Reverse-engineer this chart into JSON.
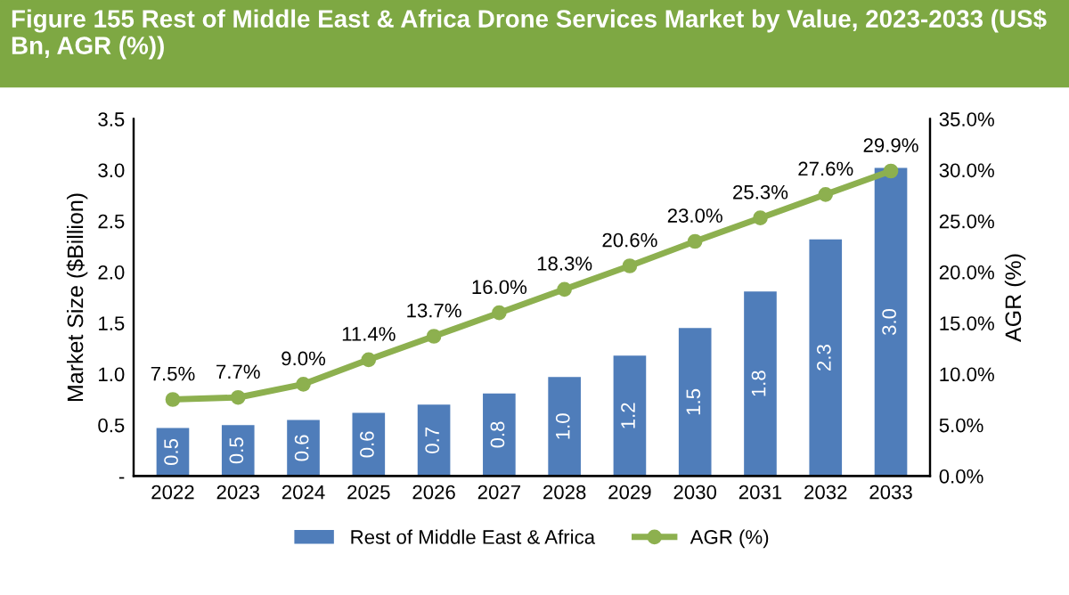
{
  "chart_data": {
    "type": "bar",
    "title": "Figure 155 Rest of Middle East & Africa Drone Services Market by Value, 2023-2033 (US$ Bn, AGR (%))",
    "ylabel": "Market Size ($Billion)",
    "y2label": "AGR (%)",
    "categories": [
      "2022",
      "2023",
      "2024",
      "2025",
      "2026",
      "2027",
      "2028",
      "2029",
      "2030",
      "2031",
      "2032",
      "2033"
    ],
    "series": [
      {
        "name": "Rest of Middle East & Africa",
        "color": "#4f7dba",
        "values": [
          0.47,
          0.5,
          0.55,
          0.62,
          0.7,
          0.81,
          0.97,
          1.18,
          1.45,
          1.81,
          2.32,
          3.02
        ],
        "value_labels": [
          "0.5",
          "0.5",
          "0.6",
          "0.6",
          "0.7",
          "0.8",
          "1.0",
          "1.2",
          "1.5",
          "1.8",
          "2.3",
          "3.0"
        ]
      },
      {
        "name": "AGR (%)",
        "type": "line",
        "axis": "y2",
        "color": "#8db04f",
        "marker": "circle",
        "values": [
          7.5,
          7.7,
          9.0,
          11.4,
          13.7,
          16.0,
          18.3,
          20.6,
          23.0,
          25.3,
          27.6,
          29.9
        ],
        "value_labels": [
          "7.5%",
          "7.7%",
          "9.0%",
          "11.4%",
          "13.7%",
          "16.0%",
          "18.3%",
          "20.6%",
          "23.0%",
          "25.3%",
          "27.6%",
          "29.9%"
        ]
      }
    ],
    "ylim": [
      0,
      3.5
    ],
    "yticks": [
      {
        "value": 0,
        "label": "-"
      },
      0.5,
      {
        "value": 1,
        "label": "1.0"
      },
      1.5,
      {
        "value": 2,
        "label": "2.0"
      },
      2.5,
      {
        "value": 3,
        "label": "3.0"
      },
      3.5
    ],
    "y2lim": [
      0,
      35
    ],
    "y2ticks": [
      {
        "value": 0,
        "label": "0.0%"
      },
      {
        "value": 5,
        "label": "5.0%"
      },
      {
        "value": 10,
        "label": "10.0%"
      },
      {
        "value": 15,
        "label": "15.0%"
      },
      {
        "value": 20,
        "label": "20.0%"
      },
      {
        "value": 25,
        "label": "25.0%"
      },
      {
        "value": 30,
        "label": "30.0%"
      },
      {
        "value": 35,
        "label": "35.0%"
      }
    ],
    "legend": "bottom",
    "grid": false
  }
}
